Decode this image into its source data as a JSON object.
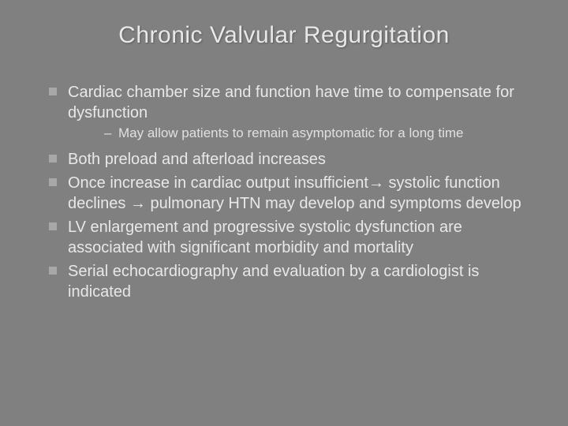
{
  "background_color": "#808080",
  "text_color": "#e8e8e8",
  "bullet_square_color": "#a8a8a8",
  "title_fontsize": 30,
  "body_fontsize": 20,
  "sub_fontsize": 17,
  "title": "Chronic Valvular Regurgitation",
  "points": [
    {
      "text": "Cardiac chamber size and function have time to compensate for dysfunction",
      "sub": [
        "May allow patients to remain asymptomatic for a long time"
      ]
    },
    {
      "text": "Both preload and afterload increases"
    },
    {
      "text": "Once increase in cardiac output insufficient→ systolic function declines → pulmonary HTN may develop and symptoms develop"
    },
    {
      "text": "LV enlargement and progressive systolic dysfunction are associated with significant morbidity and mortality"
    },
    {
      "text": "Serial echocardiography and evaluation by a cardiologist is indicated"
    }
  ]
}
